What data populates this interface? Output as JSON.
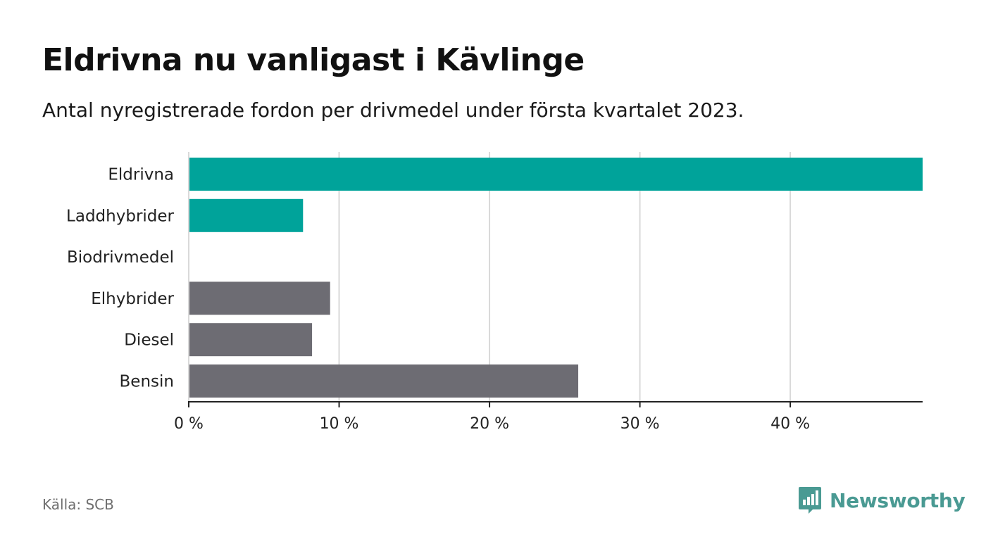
{
  "chart": {
    "title": "Eldrivna nu vanligast i Kävlinge",
    "subtitle": "Antal nyregistrerade fordon per drivmedel under första kvartalet 2023.",
    "source": "Källa: SCB",
    "brand": "Newsworthy"
  },
  "colors": {
    "highlight": "#00a39a",
    "muted": "#6d6c73",
    "grid": "#d9d9d9",
    "axis": "#222222",
    "brand": "#4a9a93"
  },
  "chart_data": {
    "type": "bar",
    "orientation": "horizontal",
    "title": "Eldrivna nu vanligast i Kävlinge",
    "subtitle": "Antal nyregistrerade fordon per drivmedel under första kvartalet 2023.",
    "xlabel": "",
    "ylabel": "",
    "categories": [
      "Eldrivna",
      "Laddhybrider",
      "Biodrivmedel",
      "Elhybrider",
      "Diesel",
      "Bensin"
    ],
    "values": [
      48.8,
      7.6,
      0,
      9.4,
      8.2,
      25.9
    ],
    "highlighted": [
      true,
      true,
      true,
      false,
      false,
      false
    ],
    "xlim": [
      0,
      48.8
    ],
    "xticks": [
      0,
      10,
      20,
      30,
      40
    ],
    "xtick_labels": [
      "0 %",
      "10 %",
      "20 %",
      "30 %",
      "40 %"
    ],
    "grid": true,
    "legend": "none"
  }
}
